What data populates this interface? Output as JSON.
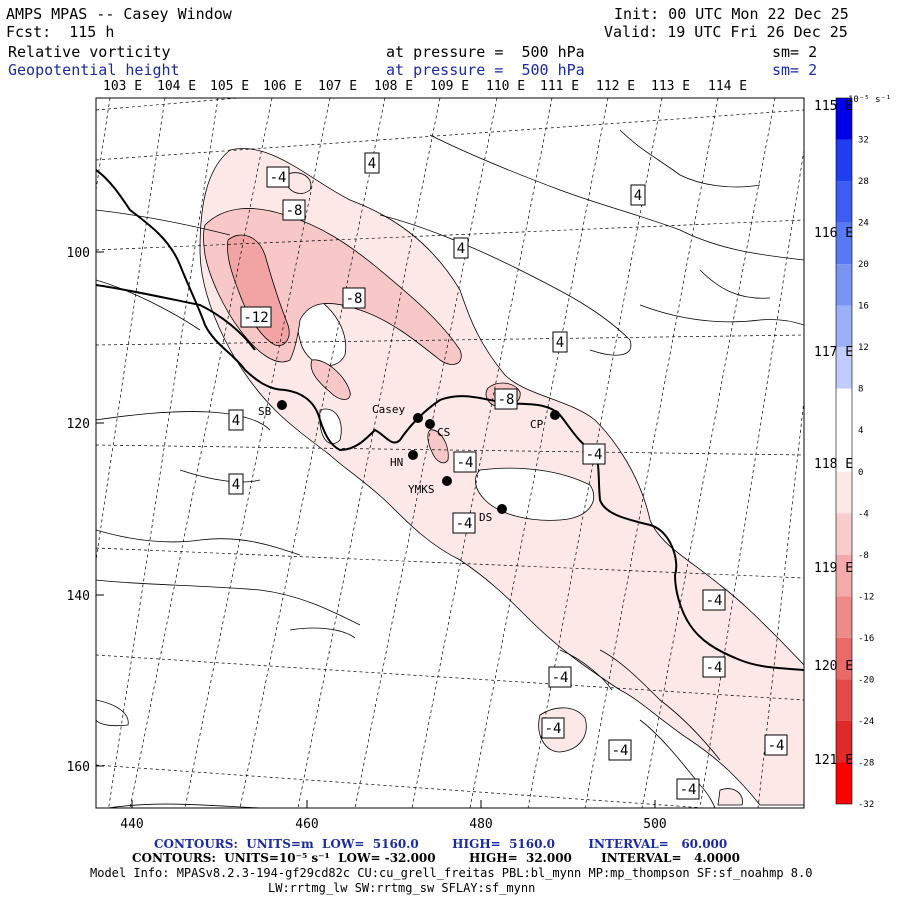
{
  "header": {
    "title": "AMPS MPAS -- Casey Window",
    "fcst": "Fcst:  115 h",
    "init": "Init: 00 UTC Mon 22 Dec 25",
    "valid": "Valid: 19 UTC Fri 26 Dec 25",
    "field1": {
      "name": "Relative vorticity",
      "level": "at pressure =  500 hPa",
      "sm": "sm= 2"
    },
    "field2": {
      "name": "Geopotential height",
      "level": "at pressure =  500 hPa",
      "sm": "sm= 2"
    }
  },
  "axes": {
    "top_lon": [
      "103 E",
      "104 E",
      "105 E",
      "106 E",
      "107 E",
      "108 E",
      "109 E",
      "110 E",
      "111 E",
      "112 E",
      "113 E",
      "114 E"
    ],
    "right_lon": [
      "115 E",
      "116 E",
      "117 E",
      "118 E",
      "119 E",
      "120 E",
      "121 E"
    ],
    "left_y": [
      "100",
      "120",
      "140",
      "160"
    ],
    "bottom_x": [
      "440",
      "460",
      "480",
      "500"
    ]
  },
  "colorbar": {
    "unit": "10⁻⁵ s⁻¹",
    "ticks": [
      "32",
      "28",
      "24",
      "20",
      "16",
      "12",
      "8",
      "4",
      "0",
      "-4",
      "-8",
      "-12",
      "-16",
      "-20",
      "-24",
      "-28",
      "-32"
    ],
    "colors": [
      "#0000e8",
      "#1f3ef0",
      "#3c5cf2",
      "#5a78f4",
      "#7a94f6",
      "#9cb0f8",
      "#c0ccfa",
      "#ffffff",
      "#ffffff",
      "#fde8e8",
      "#f9cccc",
      "#f4aaaa",
      "#ef8a8a",
      "#ea6a6a",
      "#e54a4a",
      "#e02a2a",
      "#ff0000"
    ]
  },
  "stations": [
    {
      "name": "SB"
    },
    {
      "name": "Casey"
    },
    {
      "name": "CS"
    },
    {
      "name": "CP"
    },
    {
      "name": "HN"
    },
    {
      "name": "YMKS"
    },
    {
      "name": "DS"
    }
  ],
  "contour_labels": [
    "-4",
    "4",
    "-8",
    "4",
    "4",
    "-8",
    "-12",
    "4",
    "-8",
    "4",
    "-4",
    "-4",
    "4",
    "-4",
    "-4",
    "-4",
    "-4",
    "-4",
    "-4",
    "-4",
    "-4"
  ],
  "footer": {
    "line1": "CONTOURS:  UNITS=m  LOW=  5160.0        HIGH=  5160.0        INTERVAL=   60.000",
    "line2": "CONTOURS:  UNITS=10⁻⁵ s⁻¹  LOW= -32.000        HIGH=  32.000       INTERVAL=   4.0000",
    "line3": "Model Info: MPASv8.2.3-194-gf29cd82c CU:cu_grell_freitas PBL:bl_mynn MP:mp_thompson SF:sf_noahmp 8.0",
    "line4": "LW:rrtmg_lw SW:rrtmg_sw SFLAY:sf_mynn"
  }
}
